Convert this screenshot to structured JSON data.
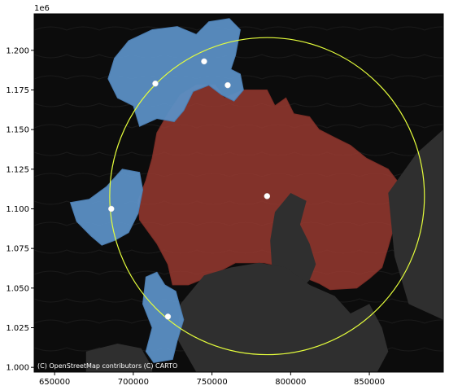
{
  "chart_data": {
    "type": "map",
    "offset_label": "1e6",
    "x_ticks": [
      "650000",
      "700000",
      "750000",
      "800000",
      "850000"
    ],
    "y_ticks": [
      "1.000",
      "1.025",
      "1.050",
      "1.075",
      "1.100",
      "1.125",
      "1.150",
      "1.175",
      "1.200"
    ],
    "xlim": [
      637000,
      897000
    ],
    "ylim": [
      997000,
      1223000
    ],
    "basemap_attribution": "(C) OpenStreetMap contributors (C) CARTO",
    "colors": {
      "basemap_land": "#0c0c0c",
      "basemap_water": "#2f2f2f",
      "region_red": "#8d362e",
      "region_blue": "#5b8fc4",
      "circle": "#e6ff3c",
      "point": "#ffffff"
    },
    "red_region": {
      "polygon": [
        [
          730000,
          1172000
        ],
        [
          740000,
          1178000
        ],
        [
          752000,
          1178000
        ],
        [
          758000,
          1170000
        ],
        [
          770000,
          1175000
        ],
        [
          785000,
          1175000
        ],
        [
          790000,
          1165000
        ],
        [
          797000,
          1170000
        ],
        [
          802000,
          1160000
        ],
        [
          812000,
          1158000
        ],
        [
          818000,
          1150000
        ],
        [
          828000,
          1145000
        ],
        [
          838000,
          1140000
        ],
        [
          848000,
          1132000
        ],
        [
          862000,
          1125000
        ],
        [
          872000,
          1112000
        ],
        [
          873000,
          1100000
        ],
        [
          866000,
          1090000
        ],
        [
          862000,
          1076000
        ],
        [
          858000,
          1063000
        ],
        [
          850000,
          1056000
        ],
        [
          842000,
          1050000
        ],
        [
          825000,
          1049000
        ],
        [
          818000,
          1053000
        ],
        [
          808000,
          1057000
        ],
        [
          797000,
          1063000
        ],
        [
          783000,
          1066000
        ],
        [
          765000,
          1066000
        ],
        [
          750000,
          1058000
        ],
        [
          735000,
          1052000
        ],
        [
          725000,
          1052000
        ],
        [
          722000,
          1065000
        ],
        [
          715000,
          1078000
        ],
        [
          704000,
          1093000
        ],
        [
          703000,
          1105000
        ],
        [
          708000,
          1118000
        ],
        [
          712000,
          1132000
        ],
        [
          715000,
          1148000
        ],
        [
          722000,
          1160000
        ]
      ]
    },
    "water_polygons": [
      [
        [
          790000,
          1098000
        ],
        [
          800000,
          1110000
        ],
        [
          810000,
          1105000
        ],
        [
          806000,
          1090000
        ],
        [
          812000,
          1078000
        ],
        [
          816000,
          1065000
        ],
        [
          812000,
          1055000
        ],
        [
          806000,
          1049000
        ],
        [
          796000,
          1052000
        ],
        [
          788000,
          1065000
        ],
        [
          787000,
          1080000
        ]
      ],
      [
        [
          730000,
          1040000
        ],
        [
          745000,
          1058000
        ],
        [
          762000,
          1063000
        ],
        [
          780000,
          1066000
        ],
        [
          797000,
          1063000
        ],
        [
          812000,
          1052000
        ],
        [
          828000,
          1045000
        ],
        [
          838000,
          1034000
        ],
        [
          850000,
          1040000
        ],
        [
          858000,
          1025000
        ],
        [
          862000,
          1010000
        ],
        [
          855000,
          997000
        ],
        [
          740000,
          997000
        ],
        [
          728000,
          1018000
        ]
      ],
      [
        [
          862000,
          1110000
        ],
        [
          880000,
          1135000
        ],
        [
          897000,
          1150000
        ],
        [
          897000,
          1030000
        ],
        [
          875000,
          1040000
        ],
        [
          866000,
          1070000
        ]
      ],
      [
        [
          670000,
          1010000
        ],
        [
          690000,
          1015000
        ],
        [
          705000,
          1012000
        ],
        [
          712000,
          1000000
        ],
        [
          712000,
          997000
        ],
        [
          670000,
          997000
        ]
      ]
    ],
    "blue_regions": [
      [
        [
          697000,
          1206000
        ],
        [
          712000,
          1213000
        ],
        [
          728000,
          1215000
        ],
        [
          740000,
          1210000
        ],
        [
          748000,
          1218000
        ],
        [
          761000,
          1220000
        ],
        [
          768000,
          1213000
        ],
        [
          765000,
          1197000
        ],
        [
          762000,
          1188000
        ],
        [
          768000,
          1185000
        ],
        [
          770000,
          1175000
        ],
        [
          764000,
          1168000
        ],
        [
          756000,
          1172000
        ],
        [
          748000,
          1178000
        ],
        [
          738000,
          1174000
        ],
        [
          732000,
          1162000
        ],
        [
          726000,
          1155000
        ],
        [
          715000,
          1157000
        ],
        [
          704000,
          1152000
        ],
        [
          700000,
          1165000
        ],
        [
          690000,
          1170000
        ],
        [
          684000,
          1182000
        ],
        [
          688000,
          1195000
        ]
      ],
      [
        [
          660000,
          1104000
        ],
        [
          672000,
          1106000
        ],
        [
          683000,
          1114000
        ],
        [
          693000,
          1125000
        ],
        [
          704000,
          1123000
        ],
        [
          706000,
          1112000
        ],
        [
          703000,
          1097000
        ],
        [
          697000,
          1085000
        ],
        [
          688000,
          1080000
        ],
        [
          680000,
          1077000
        ],
        [
          673000,
          1083000
        ],
        [
          664000,
          1092000
        ]
      ],
      [
        [
          708000,
          1057000
        ],
        [
          715000,
          1060000
        ],
        [
          720000,
          1052000
        ],
        [
          727000,
          1048000
        ],
        [
          732000,
          1030000
        ],
        [
          728000,
          1017000
        ],
        [
          725000,
          1005000
        ],
        [
          713000,
          1003000
        ],
        [
          708000,
          1010000
        ],
        [
          712000,
          1025000
        ],
        [
          706000,
          1040000
        ]
      ]
    ],
    "circle": {
      "center_x": 785000,
      "center_y": 1108000,
      "radius": 100000
    },
    "points": [
      {
        "x": 785000,
        "y": 1108000
      },
      {
        "x": 686000,
        "y": 1100000
      },
      {
        "x": 714000,
        "y": 1179000
      },
      {
        "x": 745000,
        "y": 1193000
      },
      {
        "x": 760000,
        "y": 1178000
      },
      {
        "x": 722000,
        "y": 1032000
      }
    ],
    "grid": false
  }
}
